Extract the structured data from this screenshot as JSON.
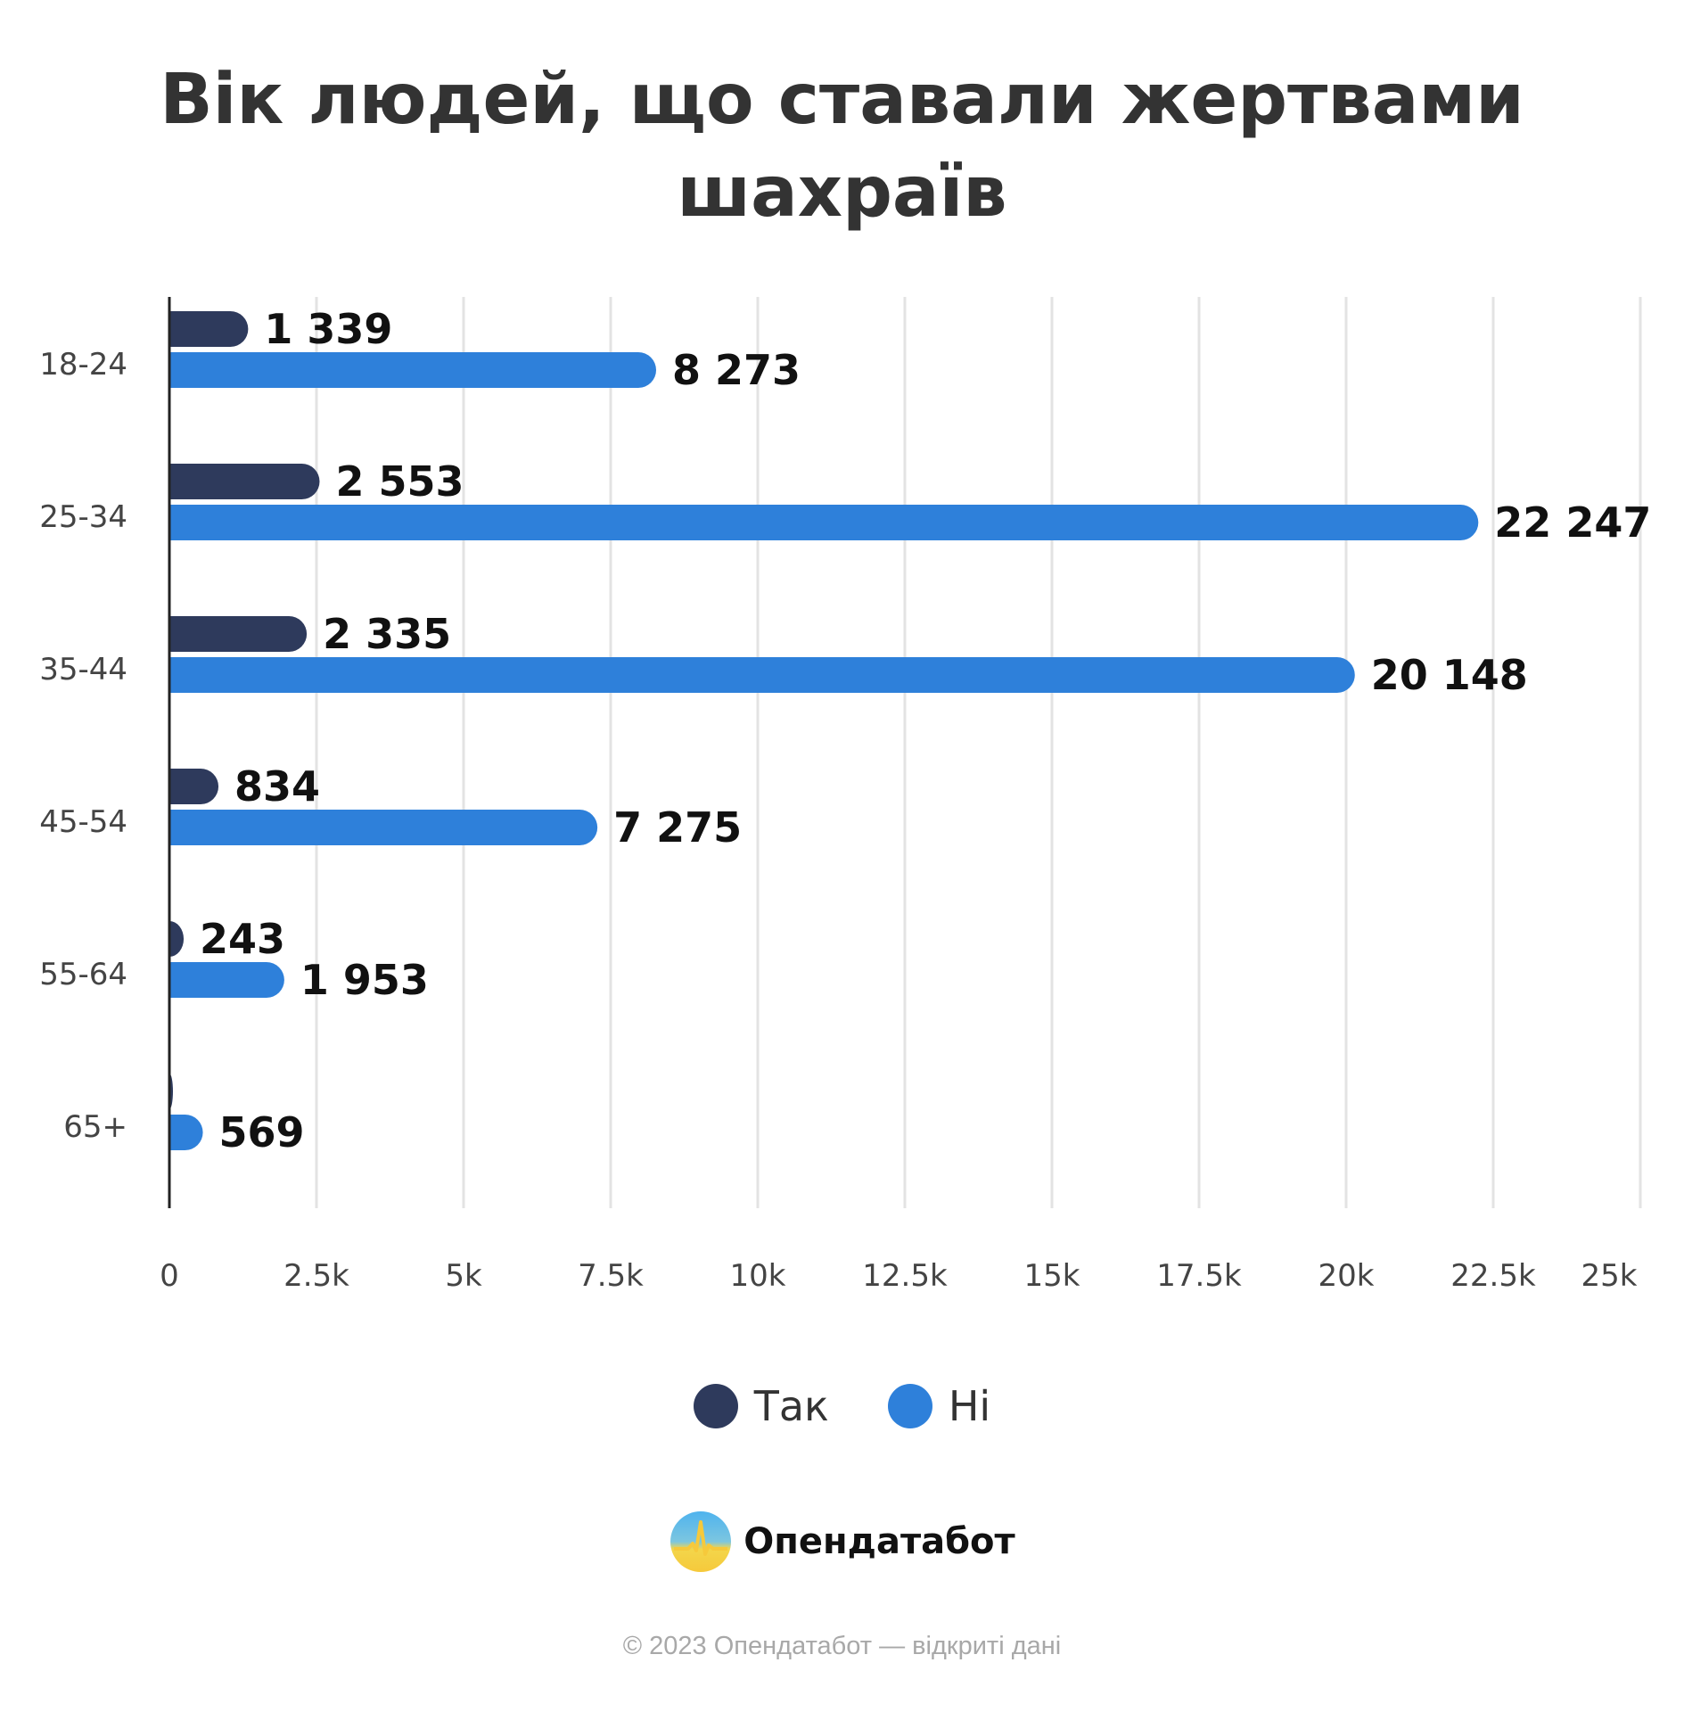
{
  "chart_data": {
    "type": "bar",
    "orientation": "horizontal",
    "title": "Вік людей, що ставали жертвами шахраїв",
    "categories": [
      "18-24",
      "25-34",
      "35-44",
      "45-54",
      "55-64",
      "65+"
    ],
    "series": [
      {
        "name": "Так",
        "color": "#2e3a5c",
        "values": [
          1339,
          2553,
          2335,
          834,
          243,
          45
        ],
        "labels": [
          "1 339",
          "2 553",
          "2 335",
          "834",
          "243",
          ""
        ]
      },
      {
        "name": "Ні",
        "color": "#2e80da",
        "values": [
          8273,
          22247,
          20148,
          7275,
          1953,
          569
        ],
        "labels": [
          "8 273",
          "22 247",
          "20 148",
          "7 275",
          "1 953",
          "569"
        ]
      }
    ],
    "xlim": [
      0,
      25000
    ],
    "xticks": [
      "0",
      "2.5k",
      "5k",
      "7.5k",
      "10k",
      "12.5k",
      "15k",
      "17.5k",
      "20k",
      "22.5k",
      "25k"
    ],
    "grid": true,
    "legend_position": "bottom"
  },
  "brand": {
    "name": "Опендатабот",
    "icon": "opendatabot-logo-icon"
  },
  "footer": {
    "text": "© 2023 Опендатабот — відкриті дані"
  }
}
